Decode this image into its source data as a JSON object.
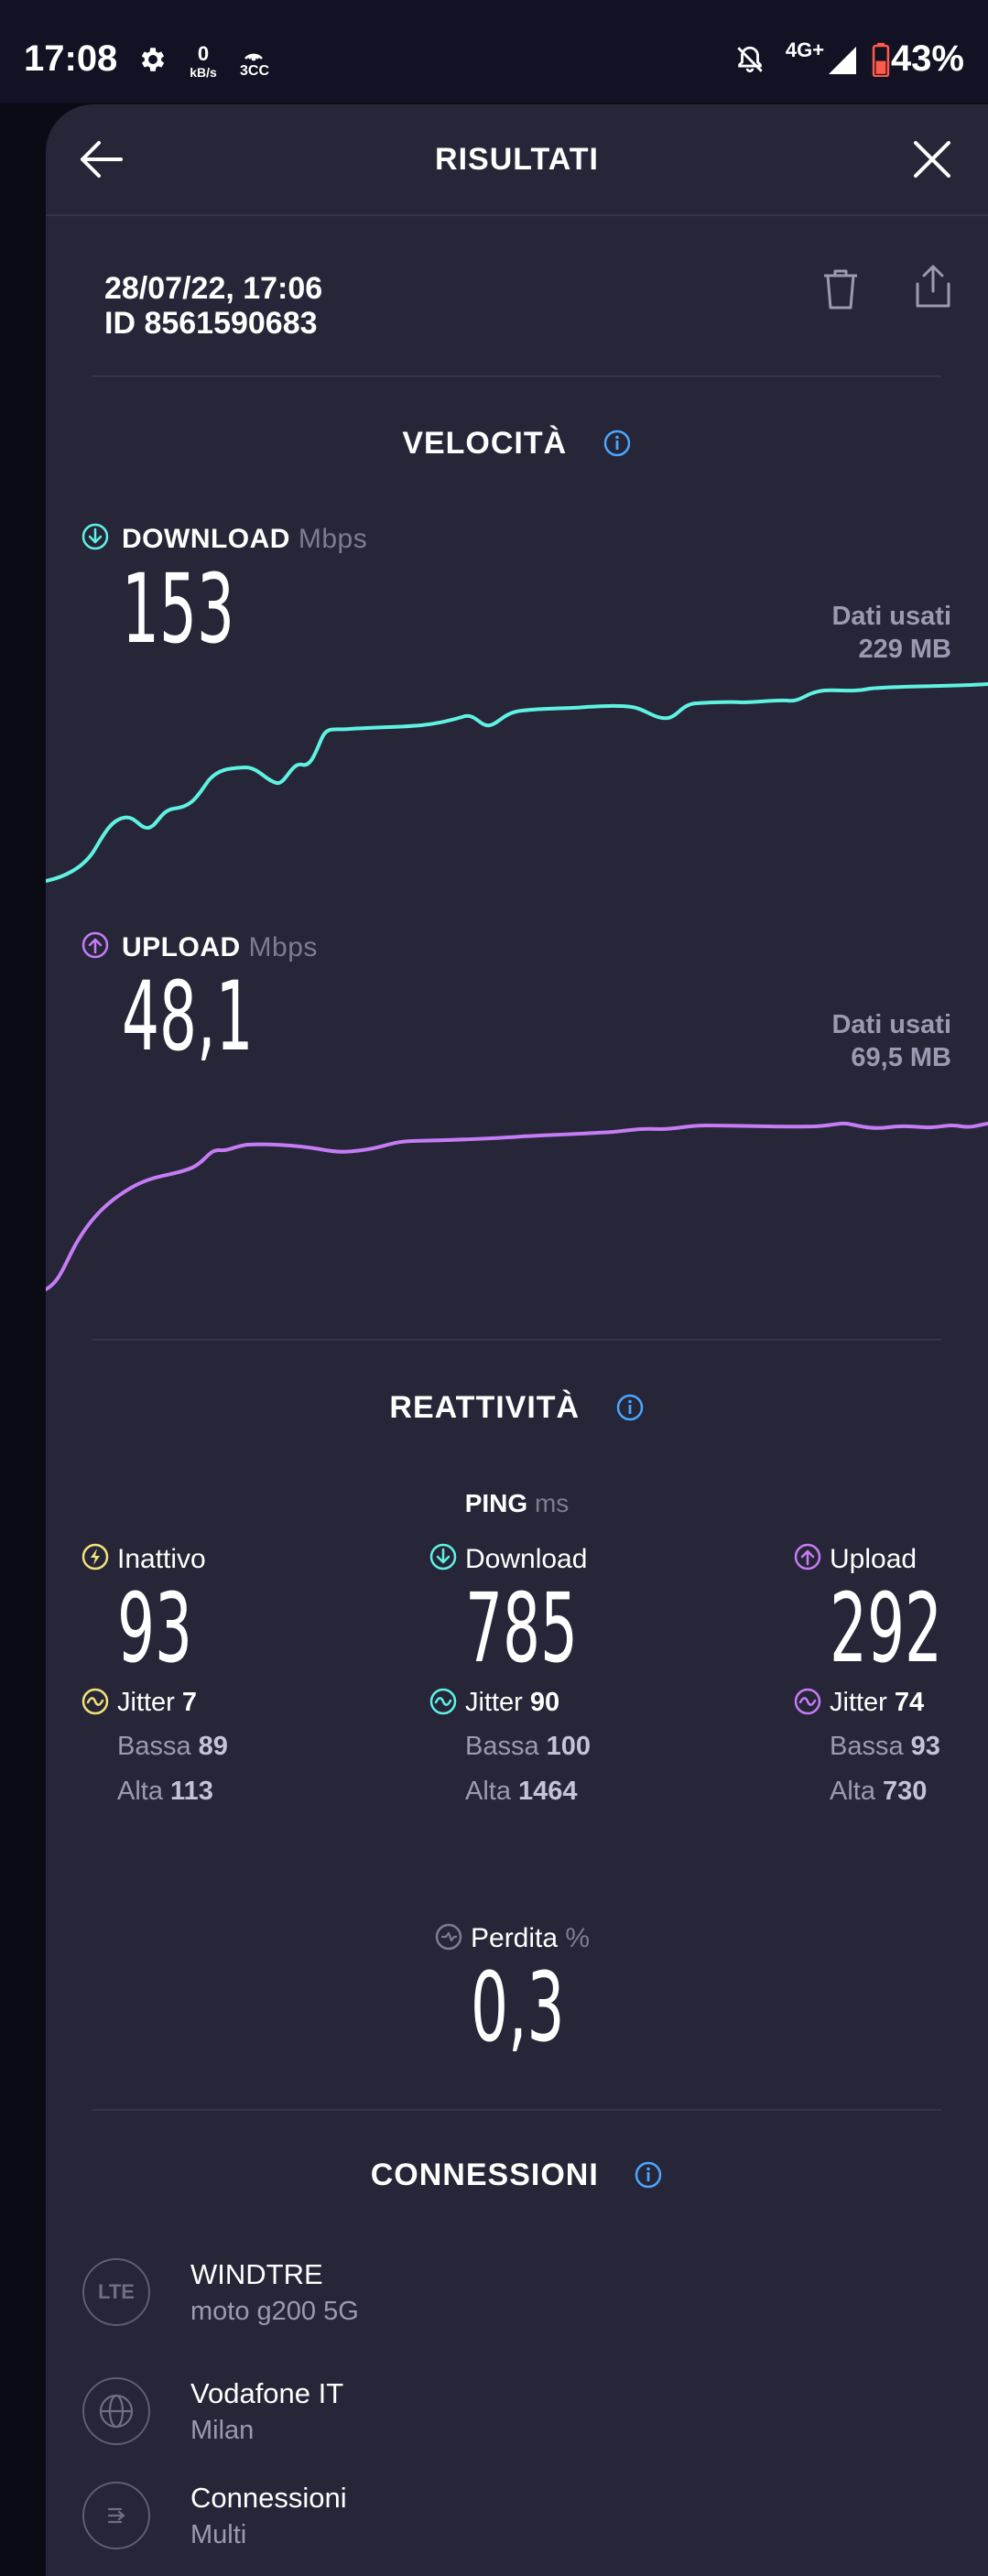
{
  "status_bar": {
    "time": "17:08",
    "net_speed_value": "0",
    "net_speed_unit": "kB/s",
    "extra_label": "3CC",
    "network": "4G+",
    "battery": "43%",
    "icons": [
      "settings-icon",
      "hotspot-icon",
      "bell-off-icon",
      "signal-icon",
      "battery-icon"
    ]
  },
  "header": {
    "title": "RISULTATI",
    "back_icon": "arrow-left-icon",
    "close_icon": "close-icon"
  },
  "result": {
    "datetime": "28/07/22, 17:06",
    "id": "ID 8561590683",
    "actions": [
      "trash-icon",
      "share-icon"
    ]
  },
  "speed": {
    "title": "VELOCITÀ",
    "download": {
      "label": "DOWNLOAD",
      "unit": "Mbps",
      "value": "153",
      "data_used_label": "Dati usati",
      "data_used": "229 MB",
      "color": "#5ff2e3"
    },
    "upload": {
      "label": "UPLOAD",
      "unit": "Mbps",
      "value": "48,1",
      "data_used_label": "Dati usati",
      "data_used": "69,5 MB",
      "color": "#c57cf5"
    }
  },
  "responsiveness": {
    "title": "REATTIVITÀ",
    "ping_label": "PING",
    "ping_unit": "ms",
    "columns": [
      {
        "label": "Inattivo",
        "value": "93",
        "jitter_label": "Jitter",
        "jitter": "7",
        "low_label": "Bassa",
        "low": "89",
        "high_label": "Alta",
        "high": "113",
        "color": "#f2e27a"
      },
      {
        "label": "Download",
        "value": "785",
        "jitter_label": "Jitter",
        "jitter": "90",
        "low_label": "Bassa",
        "low": "100",
        "high_label": "Alta",
        "high": "1464",
        "color": "#5ff2e3"
      },
      {
        "label": "Upload",
        "value": "292",
        "jitter_label": "Jitter",
        "jitter": "74",
        "low_label": "Bassa",
        "low": "93",
        "high_label": "Alta",
        "high": "730",
        "color": "#c57cf5"
      }
    ],
    "loss_label": "Perdita",
    "loss_unit": "%",
    "loss_value": "0,3"
  },
  "connections": {
    "title": "CONNESSIONI",
    "items": [
      {
        "icon": "lte-icon",
        "icon_text": "LTE",
        "name": "WINDTRE",
        "sub": "moto g200 5G"
      },
      {
        "icon": "globe-icon",
        "name": "Vodafone IT",
        "sub": "Milan"
      },
      {
        "icon": "connections-icon",
        "name": "Connessioni",
        "sub": "Multi"
      }
    ]
  }
}
